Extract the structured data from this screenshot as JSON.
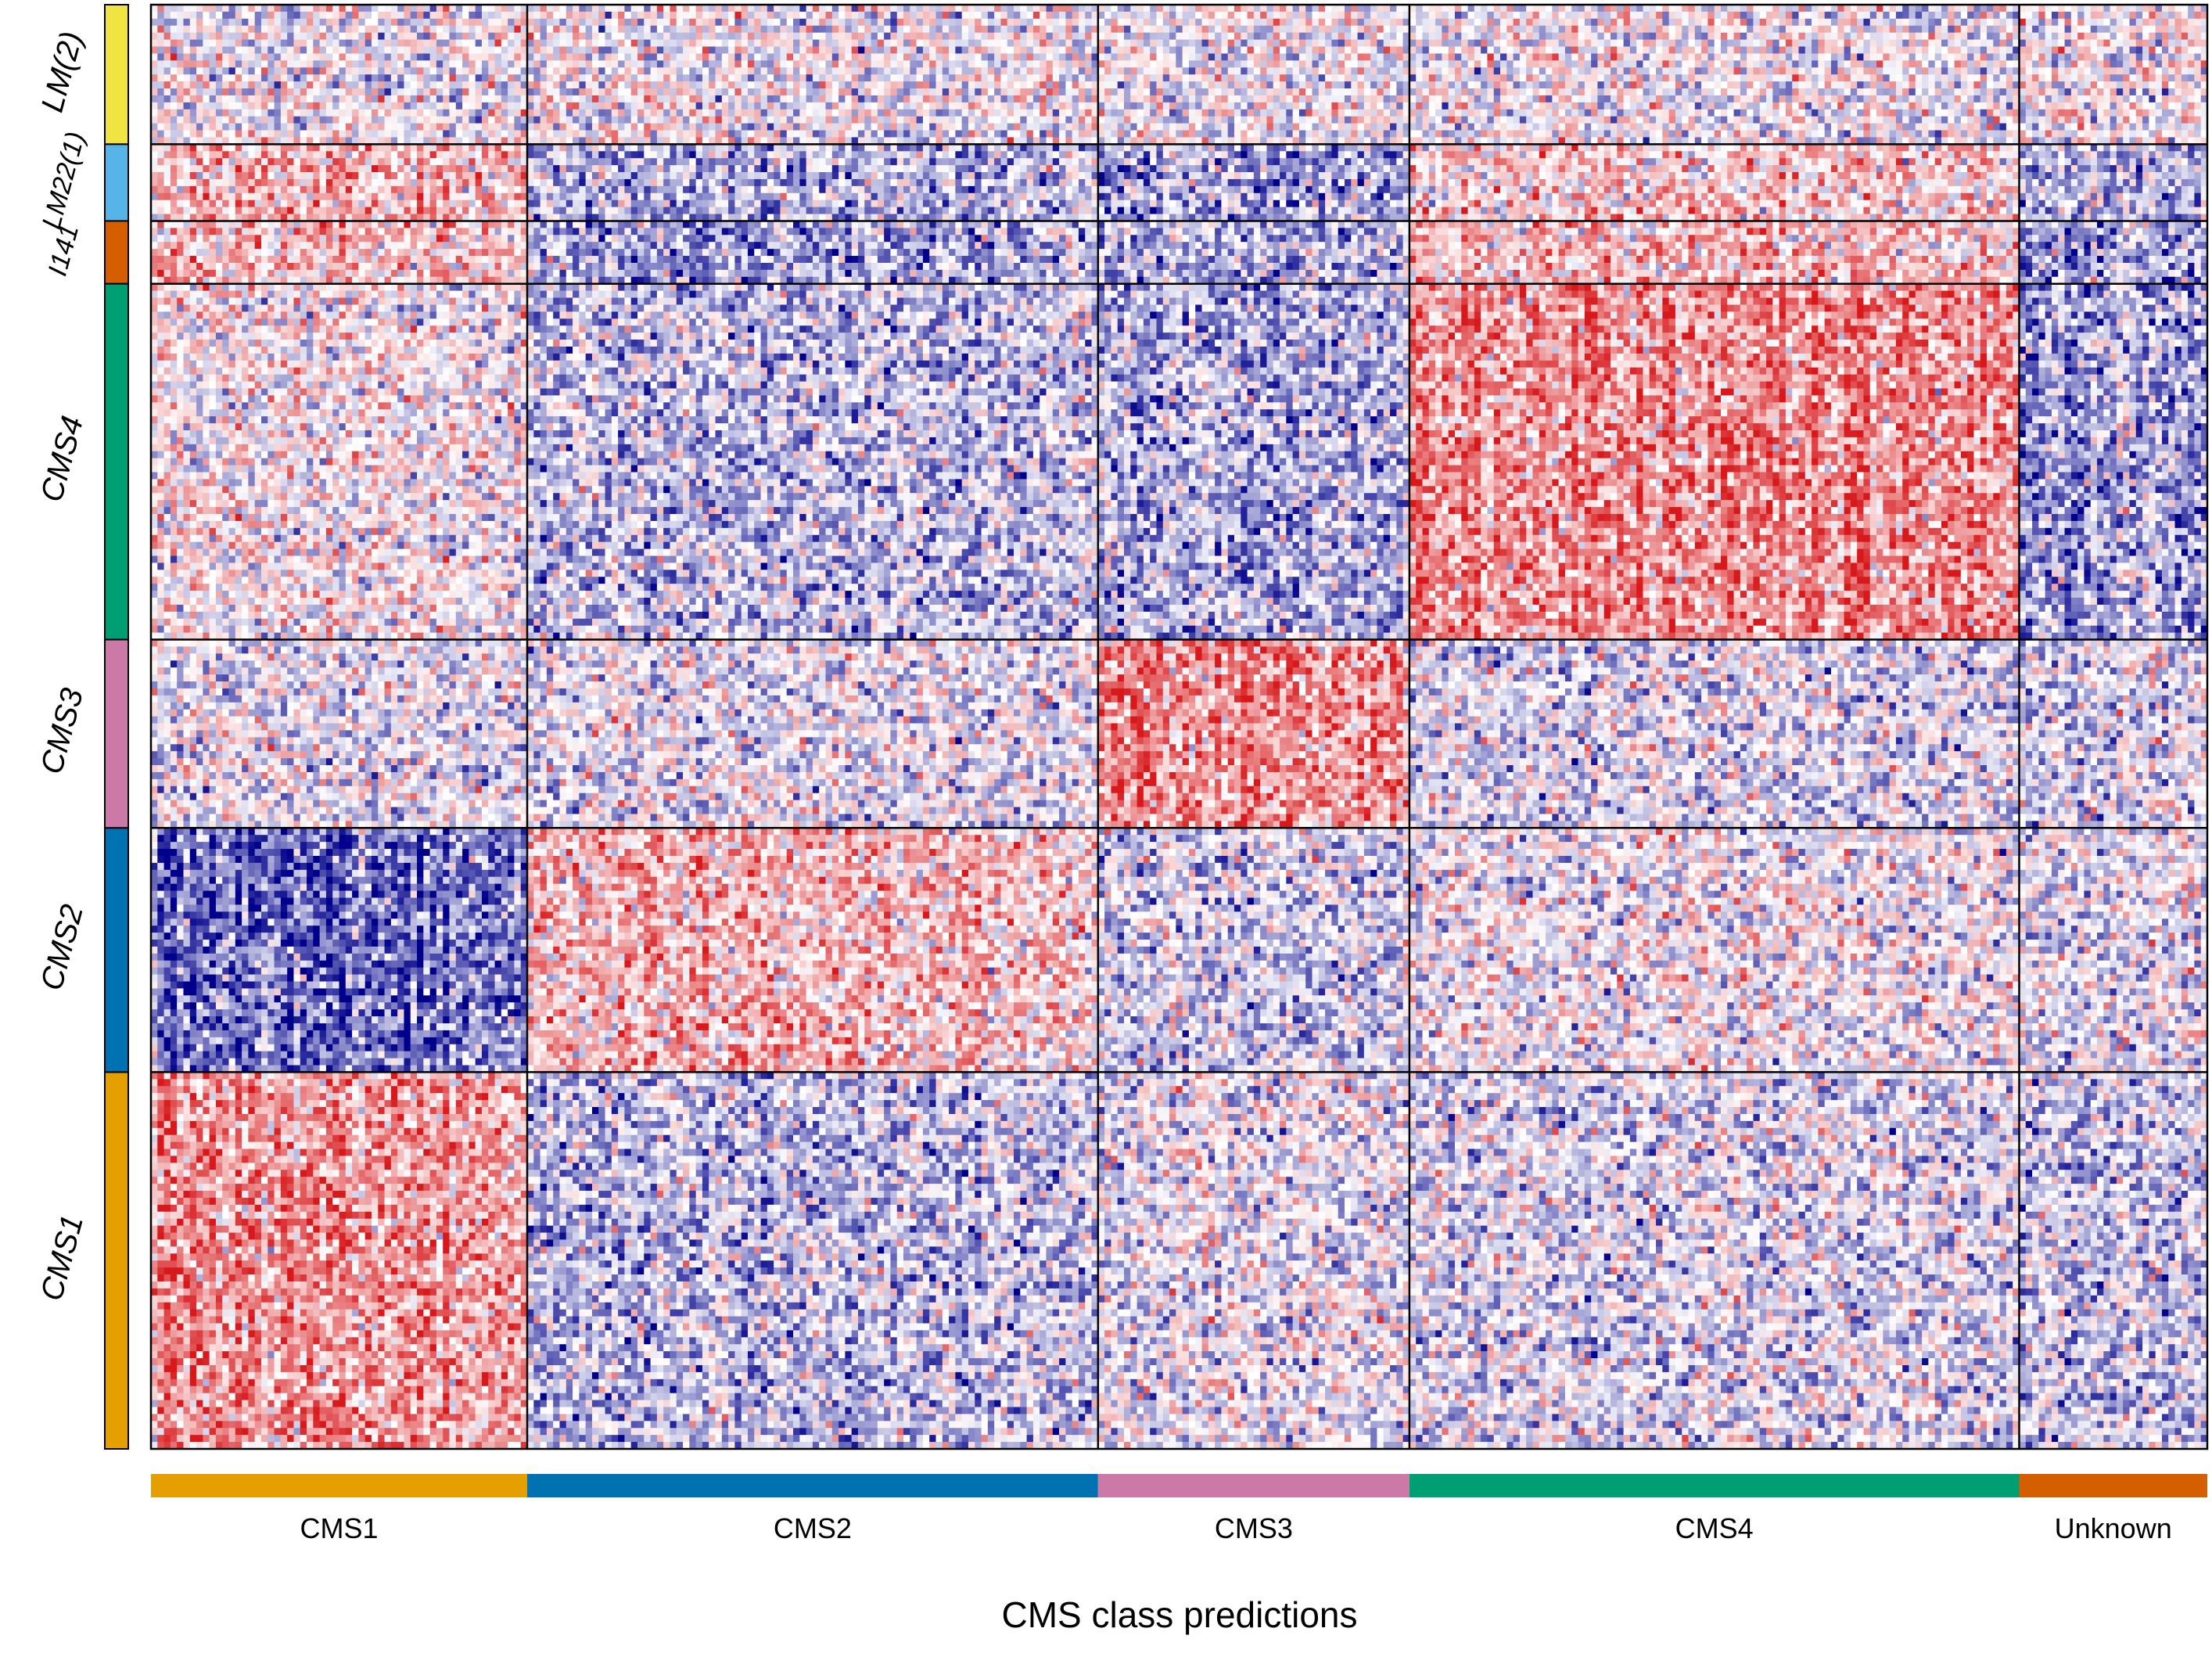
{
  "chart_data": {
    "type": "heatmap",
    "xlabel": "CMS class predictions",
    "column_groups": [
      {
        "label": "CMS1",
        "color": "#E69F00",
        "columns": 58
      },
      {
        "label": "CMS2",
        "color": "#0072B2",
        "columns": 88
      },
      {
        "label": "CMS3",
        "color": "#CC79A7",
        "columns": 48
      },
      {
        "label": "CMS4",
        "color": "#009E73",
        "columns": 94
      },
      {
        "label": "Unknown",
        "color": "#D55E00",
        "columns": 29
      }
    ],
    "row_groups": [
      {
        "label": "LM(2)",
        "color": "#F0E442",
        "rows": 20,
        "profile": [
          0,
          0,
          0,
          0,
          0
        ]
      },
      {
        "label": "LM22(1)",
        "color": "#56B4E9",
        "rows": 11,
        "profile": [
          0.6,
          -0.5,
          -0.6,
          0.4,
          -0.5
        ]
      },
      {
        "label": "I141",
        "color": "#D55E00",
        "rows": 9,
        "profile": [
          0.5,
          -0.6,
          -0.5,
          0.5,
          -0.6
        ]
      },
      {
        "label": "CMS4",
        "color": "#009E73",
        "rows": 51,
        "profile": [
          0.1,
          -0.4,
          -0.5,
          0.9,
          -0.6
        ]
      },
      {
        "label": "CMS3",
        "color": "#CC79A7",
        "rows": 27,
        "profile": [
          -0.1,
          -0.1,
          0.8,
          -0.2,
          -0.2
        ]
      },
      {
        "label": "CMS2",
        "color": "#0072B2",
        "rows": 35,
        "profile": [
          -1.0,
          0.5,
          -0.3,
          0.0,
          -0.1
        ]
      },
      {
        "label": "CMS1",
        "color": "#E69F00",
        "rows": 54,
        "profile": [
          0.8,
          -0.4,
          -0.1,
          -0.2,
          -0.3
        ]
      }
    ],
    "colors": {
      "low": "#00008B",
      "mid": "#FFFFFF",
      "high": "#D7191C",
      "grid": "#000000"
    }
  }
}
